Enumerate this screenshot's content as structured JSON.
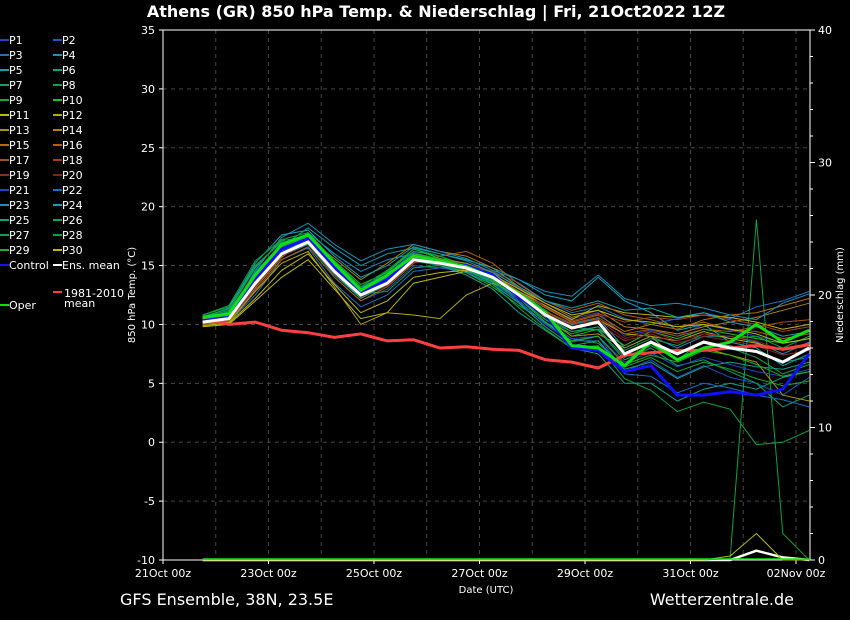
{
  "chart_data": {
    "type": "line",
    "title": "Athens  (GR)  850 hPa Temp. & Niederschlag | Fri, 21Oct2022 12Z",
    "xlabel": "Date (UTC)",
    "ylabel": "850 hPa Temp. (°C)",
    "y2label": "Niederschlag (mm)",
    "ylim": [
      -10,
      35
    ],
    "y2lim": [
      0,
      40
    ],
    "xlim_days": [
      0,
      12.27
    ],
    "yticks": [
      35,
      30,
      25,
      20,
      15,
      10,
      5,
      0,
      -5,
      -10
    ],
    "y2ticks": [
      40,
      30,
      20,
      10,
      0
    ],
    "xticks": [
      {
        "day": 0,
        "label": "21Oct 00z"
      },
      {
        "day": 2,
        "label": "23Oct 00z"
      },
      {
        "day": 4,
        "label": "25Oct 00z"
      },
      {
        "day": 6,
        "label": "27Oct 00z"
      },
      {
        "day": 8,
        "label": "29Oct 00z"
      },
      {
        "day": 10,
        "label": "31Oct 00z"
      },
      {
        "day": 12,
        "label": "02Nov 00z"
      }
    ],
    "grid": true,
    "x_days": [
      0.75,
      1.25,
      1.75,
      2.25,
      2.75,
      3.25,
      3.75,
      4.25,
      4.75,
      5.25,
      5.75,
      6.25,
      6.75,
      7.25,
      7.75,
      8.25,
      8.75,
      9.25,
      9.75,
      10.25,
      10.75,
      11.25,
      11.75,
      12.25
    ],
    "members": [
      {
        "name": "P1",
        "color": "#2a3fc8",
        "values": [
          10.0,
          10.3,
          13.0,
          16.5,
          17.5,
          15.0,
          13.0,
          14.0,
          16.0,
          15.5,
          15.0,
          14.5,
          13.0,
          11.5,
          10.5,
          11.0,
          9.0,
          9.5,
          9.0,
          10.0,
          9.5,
          9.0,
          8.5,
          9.5
        ]
      },
      {
        "name": "P2",
        "color": "#1f55c0",
        "values": [
          10.4,
          10.8,
          14.5,
          16.8,
          17.2,
          14.0,
          12.0,
          13.0,
          15.0,
          14.8,
          14.5,
          13.5,
          12.0,
          10.0,
          8.5,
          9.0,
          6.0,
          7.0,
          5.5,
          6.5,
          5.5,
          5.0,
          4.0,
          5.5
        ]
      },
      {
        "name": "P3",
        "color": "#1f70c0",
        "values": [
          10.1,
          10.2,
          12.5,
          15.5,
          16.5,
          13.5,
          11.5,
          12.5,
          14.5,
          14.8,
          15.0,
          14.5,
          13.5,
          12.0,
          11.0,
          11.5,
          10.5,
          10.0,
          10.5,
          11.0,
          10.5,
          11.5,
          12.0,
          12.8
        ]
      },
      {
        "name": "P4",
        "color": "#1a90c0",
        "values": [
          10.5,
          11.0,
          14.0,
          16.2,
          17.8,
          16.0,
          14.5,
          15.5,
          16.0,
          15.5,
          15.2,
          14.2,
          12.5,
          11.0,
          10.0,
          10.5,
          8.0,
          9.0,
          8.0,
          9.0,
          9.0,
          8.5,
          7.5,
          8.5
        ]
      },
      {
        "name": "P5",
        "color": "#15a0b0",
        "values": [
          10.3,
          10.6,
          13.8,
          16.6,
          18.2,
          16.5,
          15.0,
          16.0,
          16.5,
          16.0,
          15.5,
          14.8,
          13.8,
          12.5,
          12.0,
          14.0,
          12.0,
          11.0,
          9.5,
          10.0,
          8.5,
          8.0,
          6.5,
          7.5
        ]
      },
      {
        "name": "P6",
        "color": "#10a088",
        "values": [
          10.0,
          10.4,
          13.2,
          15.8,
          16.8,
          14.2,
          12.2,
          13.8,
          15.8,
          15.0,
          14.2,
          13.0,
          11.0,
          9.5,
          8.0,
          7.5,
          5.0,
          5.0,
          3.5,
          4.5,
          5.0,
          4.5,
          5.5,
          6.0
        ]
      },
      {
        "name": "P7",
        "color": "#10a068",
        "values": [
          10.6,
          11.2,
          14.8,
          17.2,
          17.0,
          14.6,
          13.0,
          14.5,
          16.2,
          15.8,
          15.0,
          14.0,
          12.8,
          11.2,
          9.8,
          9.5,
          7.0,
          8.0,
          6.5,
          7.0,
          6.0,
          5.0,
          3.0,
          4.0
        ]
      },
      {
        "name": "P8",
        "color": "#10a048",
        "values": [
          10.2,
          10.8,
          13.6,
          16.4,
          17.4,
          14.8,
          12.6,
          12.8,
          14.8,
          15.0,
          14.6,
          13.6,
          12.2,
          10.4,
          9.2,
          9.8,
          7.8,
          8.8,
          8.2,
          9.2,
          8.8,
          9.0,
          8.0,
          9.0
        ]
      },
      {
        "name": "P9",
        "color": "#18a830",
        "values": [
          10.8,
          11.5,
          15.0,
          17.0,
          17.2,
          15.2,
          13.2,
          14.2,
          15.6,
          15.2,
          14.4,
          13.2,
          11.6,
          10.2,
          8.8,
          8.4,
          6.4,
          7.2,
          6.0,
          6.8,
          6.2,
          5.4,
          4.8,
          5.2
        ]
      },
      {
        "name": "P10",
        "color": "#20c020",
        "values": [
          10.4,
          10.7,
          13.7,
          16.3,
          17.6,
          15.4,
          13.4,
          14.4,
          16.4,
          15.6,
          15.0,
          14.0,
          12.4,
          10.6,
          9.0,
          9.6,
          8.2,
          9.4,
          8.8,
          9.6,
          9.2,
          8.8,
          8.4,
          8.8
        ]
      },
      {
        "name": "P11",
        "color": "#b8b810",
        "values": [
          9.8,
          10.0,
          12.0,
          14.0,
          15.5,
          13.0,
          10.5,
          11.0,
          13.5,
          14.0,
          14.5,
          14.0,
          12.8,
          11.6,
          10.4,
          11.6,
          11.0,
          10.8,
          10.6,
          10.8,
          10.6,
          10.2,
          9.6,
          10.0
        ]
      },
      {
        "name": "P12",
        "color": "#b8a810",
        "values": [
          10.0,
          10.2,
          12.8,
          15.2,
          16.2,
          13.2,
          10.0,
          11.0,
          10.8,
          10.5,
          12.5,
          13.5,
          12.5,
          11.0,
          9.6,
          10.4,
          9.2,
          9.0,
          8.6,
          9.4,
          8.8,
          8.4,
          7.8,
          8.2
        ]
      },
      {
        "name": "P13",
        "color": "#a89010",
        "values": [
          10.2,
          10.4,
          13.4,
          16.0,
          17.0,
          14.6,
          12.8,
          14.2,
          15.8,
          15.6,
          15.2,
          14.4,
          12.6,
          10.6,
          9.0,
          9.2,
          8.0,
          9.0,
          7.0,
          8.0,
          7.4,
          6.8,
          4.0,
          3.5
        ]
      },
      {
        "name": "P14",
        "color": "#b08010",
        "values": [
          10.1,
          10.5,
          13.1,
          15.7,
          17.3,
          15.6,
          13.8,
          15.2,
          16.8,
          16.2,
          15.8,
          14.8,
          13.2,
          11.8,
          10.6,
          11.2,
          9.8,
          9.6,
          9.2,
          9.8,
          10.2,
          10.6,
          11.2,
          11.8
        ]
      },
      {
        "name": "P15",
        "color": "#b07010",
        "values": [
          10.3,
          10.6,
          13.3,
          15.9,
          17.0,
          14.4,
          12.4,
          13.4,
          15.4,
          15.4,
          15.0,
          14.2,
          12.8,
          11.4,
          10.2,
          10.8,
          9.4,
          10.0,
          9.6,
          10.4,
          10.8,
          11.0,
          11.6,
          12.2
        ]
      },
      {
        "name": "P16",
        "color": "#b06010",
        "values": [
          10.0,
          10.3,
          12.9,
          15.5,
          16.6,
          14.0,
          12.0,
          13.2,
          15.2,
          15.8,
          16.2,
          15.2,
          13.4,
          12.0,
          11.2,
          11.8,
          10.8,
          10.4,
          9.8,
          10.2,
          9.6,
          9.4,
          8.8,
          9.2
        ]
      },
      {
        "name": "P17",
        "color": "#a85010",
        "values": [
          10.2,
          10.6,
          13.5,
          16.1,
          17.1,
          14.7,
          12.7,
          13.7,
          15.7,
          15.3,
          14.9,
          14.1,
          12.7,
          11.1,
          10.1,
          10.6,
          9.2,
          9.6,
          9.0,
          9.6,
          9.4,
          9.8,
          10.2,
          10.4
        ]
      },
      {
        "name": "P18",
        "color": "#a04018",
        "values": [
          10.4,
          10.7,
          13.9,
          16.5,
          17.3,
          14.9,
          12.9,
          14.1,
          15.9,
          15.5,
          15.1,
          14.5,
          13.1,
          11.5,
          10.3,
          10.9,
          10.2,
          10.6,
          10.4,
          10.8,
          10.4,
          10.0,
          9.4,
          9.8
        ]
      },
      {
        "name": "P19",
        "color": "#902820",
        "values": [
          10.1,
          10.4,
          13.2,
          15.8,
          16.9,
          14.3,
          12.3,
          13.3,
          15.3,
          15.1,
          14.7,
          13.9,
          12.5,
          10.9,
          9.6,
          10.1,
          8.6,
          9.2,
          8.4,
          9.0,
          8.6,
          8.2,
          7.4,
          7.8
        ]
      },
      {
        "name": "P20",
        "color": "#882020",
        "values": [
          10.3,
          10.5,
          13.4,
          16.0,
          17.0,
          14.5,
          12.5,
          13.6,
          15.6,
          15.3,
          14.9,
          14.1,
          12.6,
          11.0,
          9.9,
          10.4,
          8.8,
          9.4,
          8.6,
          9.2,
          9.0,
          8.6,
          7.8,
          8.4
        ]
      },
      {
        "name": "P21",
        "color": "#1f48c0",
        "values": [
          10.2,
          10.6,
          13.6,
          16.2,
          17.2,
          14.7,
          12.7,
          13.9,
          15.9,
          15.4,
          14.8,
          13.8,
          12.0,
          10.0,
          8.8,
          9.0,
          6.8,
          7.6,
          6.4,
          7.2,
          6.6,
          6.0,
          5.6,
          6.2
        ]
      },
      {
        "name": "P22",
        "color": "#1a70c0",
        "values": [
          10.5,
          10.9,
          14.2,
          16.6,
          17.6,
          15.1,
          13.1,
          14.3,
          16.1,
          15.5,
          14.9,
          13.7,
          11.9,
          10.1,
          8.6,
          8.6,
          5.8,
          5.6,
          4.2,
          5.0,
          4.6,
          4.0,
          3.6,
          3.0
        ]
      },
      {
        "name": "P23",
        "color": "#1890b8",
        "values": [
          10.3,
          10.7,
          14.6,
          17.4,
          18.6,
          16.8,
          15.4,
          16.4,
          16.8,
          16.2,
          15.6,
          14.6,
          13.8,
          12.8,
          12.4,
          14.2,
          12.2,
          11.6,
          11.8,
          11.4,
          10.8,
          10.4,
          11.8,
          12.6
        ]
      },
      {
        "name": "P24",
        "color": "#10a0b0",
        "values": [
          10.6,
          11.4,
          15.2,
          17.6,
          18.0,
          15.8,
          14.0,
          15.0,
          16.6,
          16.0,
          15.4,
          14.4,
          13.2,
          12.0,
          11.4,
          12.0,
          11.2,
          11.4,
          10.6,
          11.0,
          10.2,
          9.8,
          9.0,
          9.4
        ]
      },
      {
        "name": "P25",
        "color": "#10a088",
        "values": [
          10.4,
          10.9,
          14.0,
          16.4,
          17.0,
          14.4,
          12.2,
          13.4,
          15.4,
          15.0,
          14.4,
          13.4,
          11.8,
          9.8,
          8.2,
          8.6,
          6.2,
          6.8,
          5.4,
          6.4,
          6.8,
          6.4,
          6.2,
          6.8
        ]
      },
      {
        "name": "P26",
        "color": "#10a070",
        "values": [
          10.5,
          11.1,
          14.4,
          16.8,
          17.4,
          14.8,
          12.6,
          13.8,
          15.8,
          15.2,
          14.6,
          13.6,
          12.2,
          10.4,
          9.4,
          9.8,
          7.6,
          8.4,
          7.6,
          8.4,
          8.2,
          7.6,
          6.8,
          7.2
        ]
      },
      {
        "name": "P27",
        "color": "#10a050",
        "values": [
          10.7,
          11.3,
          14.9,
          17.1,
          17.5,
          15.0,
          12.8,
          14.0,
          15.9,
          15.3,
          14.7,
          13.7,
          12.3,
          10.7,
          9.4,
          9.6,
          7.2,
          8.2,
          7.0,
          8.6,
          8.0,
          7.2,
          5.8,
          6.6
        ]
      },
      {
        "name": "P28",
        "color": "#10a040",
        "values": [
          10.8,
          11.6,
          15.4,
          17.2,
          17.8,
          15.4,
          13.2,
          14.6,
          16.4,
          15.8,
          14.8,
          13.4,
          11.4,
          9.6,
          8.0,
          8.2,
          5.4,
          4.4,
          2.6,
          3.4,
          2.8,
          -0.2,
          0.0,
          1.0
        ]
      },
      {
        "name": "P29",
        "color": "#20b020",
        "values": [
          10.6,
          11.0,
          14.2,
          16.6,
          17.4,
          14.8,
          12.8,
          14.2,
          16.0,
          15.6,
          15.0,
          13.8,
          12.2,
          10.2,
          8.6,
          9.0,
          6.6,
          7.4,
          6.8,
          7.8,
          7.4,
          6.6,
          5.6,
          6.0
        ]
      },
      {
        "name": "P30",
        "color": "#b8b810",
        "values": [
          9.9,
          10.1,
          12.2,
          14.6,
          16.0,
          13.4,
          11.0,
          12.0,
          14.0,
          14.4,
          14.6,
          14.2,
          13.0,
          11.8,
          10.8,
          11.2,
          10.4,
          10.2,
          9.8,
          10.0,
          9.6,
          9.2,
          8.4,
          8.8
        ]
      }
    ],
    "control": {
      "name": "Control",
      "color": "#1010ff",
      "values": [
        10.3,
        10.6,
        13.8,
        16.4,
        17.3,
        14.8,
        12.6,
        13.8,
        15.8,
        15.3,
        15.0,
        14.2,
        12.3,
        10.8,
        8.0,
        7.8,
        6.0,
        6.5,
        4.0,
        4.0,
        4.3,
        4.0,
        4.5,
        7.5
      ]
    },
    "ens_mean": {
      "name": "Ens. mean",
      "color": "#ffffff",
      "values": [
        10.2,
        10.5,
        13.5,
        16.0,
        17.0,
        14.5,
        12.5,
        13.5,
        15.5,
        15.2,
        14.8,
        14.0,
        12.5,
        10.8,
        9.7,
        10.2,
        7.5,
        8.5,
        7.5,
        8.5,
        8.0,
        7.7,
        6.8,
        8.0
      ]
    },
    "oper": {
      "name": "Oper",
      "color": "#10e010",
      "values": [
        10.6,
        10.9,
        14.2,
        16.8,
        17.6,
        15.2,
        12.9,
        14.2,
        15.8,
        15.4,
        14.9,
        14.0,
        12.6,
        11.0,
        8.2,
        8.0,
        6.5,
        8.5,
        7.0,
        8.0,
        8.5,
        10.0,
        8.5,
        9.5
      ]
    },
    "clim_mean": {
      "name": "1981-2010 mean",
      "color": "#ff4040",
      "values": [
        10.5,
        10.0,
        10.2,
        9.5,
        9.3,
        8.9,
        9.2,
        8.6,
        8.7,
        8.0,
        8.1,
        7.9,
        7.8,
        7.0,
        6.8,
        6.3,
        7.4,
        7.6,
        7.8,
        7.8,
        8.0,
        8.2,
        7.9,
        8.3
      ]
    },
    "precip": [
      {
        "name": "Ens. mean",
        "color": "#ffffff",
        "values": [
          0,
          0,
          0,
          0,
          0,
          0,
          0,
          0,
          0,
          0,
          0,
          0,
          0,
          0,
          0,
          0,
          0,
          0,
          0,
          0,
          0,
          0.7,
          0.2,
          0
        ]
      },
      {
        "name": "P28",
        "color": "#10a040",
        "values": [
          0,
          0,
          0,
          0,
          0,
          0,
          0,
          0,
          0,
          0,
          0,
          0,
          0,
          0,
          0,
          0,
          0,
          0,
          0,
          0,
          0.1,
          25.7,
          2.0,
          0
        ]
      },
      {
        "name": "P30",
        "color": "#b8b810",
        "values": [
          0,
          0,
          0,
          0,
          0,
          0,
          0,
          0,
          0,
          0,
          0,
          0,
          0,
          0,
          0,
          0,
          0,
          0,
          0,
          0,
          0.3,
          2.0,
          0,
          0
        ]
      }
    ],
    "legend_placement": "left"
  },
  "footer": {
    "left": "GFS Ensemble, 38N, 23.5E",
    "right": "Wetterzentrale.de"
  }
}
